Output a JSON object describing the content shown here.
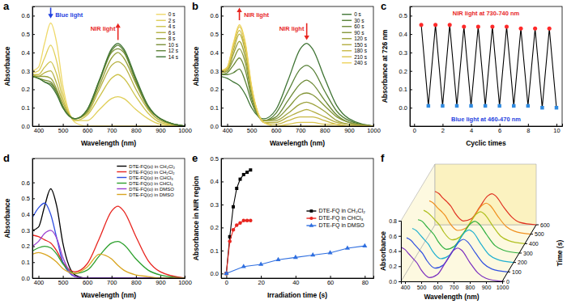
{
  "chart_data": [
    {
      "title": "a",
      "type": "line",
      "xlabel": "Wavelength (nm)",
      "ylabel": "Absorbance",
      "x": [
        375,
        400,
        425,
        450,
        475,
        500,
        550,
        600,
        650,
        700,
        726,
        750,
        800,
        850,
        900,
        1000
      ],
      "xlim": [
        375,
        1000
      ],
      "xticks": [
        400,
        500,
        600,
        700,
        800,
        900,
        1000
      ],
      "ylim": [
        0,
        0.65
      ],
      "yticks": [
        {
          "value": 0,
          "label": "0.0"
        },
        0.1,
        0.2,
        0.3,
        0.4,
        0.5,
        0.6
      ],
      "legend": "top right",
      "annotations": [
        {
          "text": "Blue light",
          "color": "#1f3fe0"
        },
        {
          "text": "NIR light",
          "color": "#e8251f"
        }
      ],
      "series": [
        {
          "name": "0 s",
          "color": "#efd96a",
          "values": [
            0.3,
            0.32,
            0.45,
            0.56,
            0.45,
            0.22,
            0.02,
            0,
            0,
            0,
            0,
            0,
            0,
            0,
            0,
            0
          ]
        },
        {
          "name": "2 s",
          "color": "#e0cf58",
          "values": [
            0.29,
            0.3,
            0.37,
            0.44,
            0.35,
            0.18,
            0.03,
            0.03,
            0.09,
            0.15,
            0.16,
            0.15,
            0.09,
            0.04,
            0.01,
            0
          ]
        },
        {
          "name": "4 s",
          "color": "#cdc24a",
          "values": [
            0.28,
            0.28,
            0.32,
            0.35,
            0.28,
            0.15,
            0.03,
            0.06,
            0.16,
            0.26,
            0.28,
            0.26,
            0.16,
            0.07,
            0.02,
            0
          ]
        },
        {
          "name": "6 s",
          "color": "#b5b03f",
          "values": [
            0.28,
            0.27,
            0.29,
            0.3,
            0.23,
            0.13,
            0.04,
            0.07,
            0.2,
            0.33,
            0.35,
            0.33,
            0.2,
            0.09,
            0.03,
            0
          ]
        },
        {
          "name": "8 s",
          "color": "#97a03a",
          "values": [
            0.27,
            0.27,
            0.27,
            0.26,
            0.2,
            0.11,
            0.04,
            0.08,
            0.22,
            0.37,
            0.4,
            0.37,
            0.23,
            0.1,
            0.04,
            0
          ]
        },
        {
          "name": "10 s",
          "color": "#7a9038",
          "values": [
            0.27,
            0.26,
            0.25,
            0.24,
            0.19,
            0.11,
            0.04,
            0.08,
            0.24,
            0.4,
            0.42,
            0.4,
            0.24,
            0.1,
            0.04,
            0
          ]
        },
        {
          "name": "12 s",
          "color": "#5d8236",
          "values": [
            0.27,
            0.26,
            0.24,
            0.23,
            0.18,
            0.1,
            0.04,
            0.09,
            0.25,
            0.41,
            0.44,
            0.41,
            0.25,
            0.11,
            0.04,
            0
          ]
        },
        {
          "name": "14 s",
          "color": "#3f7434",
          "values": [
            0.27,
            0.26,
            0.24,
            0.22,
            0.17,
            0.1,
            0.04,
            0.09,
            0.25,
            0.42,
            0.45,
            0.42,
            0.26,
            0.11,
            0.04,
            0
          ]
        }
      ]
    },
    {
      "title": "b",
      "type": "line",
      "xlabel": "Wavelength (nm)",
      "ylabel": "Absorbance",
      "x": [
        375,
        400,
        425,
        450,
        475,
        500,
        550,
        600,
        650,
        700,
        726,
        750,
        800,
        850,
        900,
        1000
      ],
      "xlim": [
        375,
        1000
      ],
      "xticks": [
        400,
        500,
        600,
        700,
        800,
        900,
        1000
      ],
      "ylim": [
        0,
        0.65
      ],
      "yticks": [
        {
          "value": 0,
          "label": "0.0"
        },
        0.1,
        0.2,
        0.3,
        0.4,
        0.5,
        0.6
      ],
      "legend": "top right",
      "annotations": [
        {
          "text": "NIR light",
          "color": "#e8251f"
        },
        {
          "text": "NIR light",
          "color": "#e8251f"
        }
      ],
      "series": [
        {
          "name": "0 s",
          "color": "#3f7434",
          "values": [
            0.27,
            0.26,
            0.24,
            0.22,
            0.17,
            0.1,
            0.04,
            0.09,
            0.25,
            0.42,
            0.45,
            0.42,
            0.26,
            0.11,
            0.04,
            0
          ]
        },
        {
          "name": "30 s",
          "color": "#567f35",
          "values": [
            0.28,
            0.28,
            0.29,
            0.31,
            0.24,
            0.13,
            0.03,
            0.07,
            0.19,
            0.31,
            0.33,
            0.31,
            0.19,
            0.08,
            0.03,
            0
          ]
        },
        {
          "name": "60 s",
          "color": "#6d8a37",
          "values": [
            0.28,
            0.29,
            0.33,
            0.37,
            0.3,
            0.15,
            0.03,
            0.05,
            0.14,
            0.23,
            0.25,
            0.23,
            0.14,
            0.06,
            0.02,
            0
          ]
        },
        {
          "name": "90 s",
          "color": "#849639",
          "values": [
            0.29,
            0.3,
            0.36,
            0.42,
            0.34,
            0.17,
            0.03,
            0.04,
            0.1,
            0.17,
            0.18,
            0.17,
            0.11,
            0.05,
            0.02,
            0
          ]
        },
        {
          "name": "120 s",
          "color": "#9ca23c",
          "values": [
            0.29,
            0.3,
            0.39,
            0.46,
            0.37,
            0.19,
            0.03,
            0.03,
            0.07,
            0.12,
            0.13,
            0.12,
            0.08,
            0.03,
            0.01,
            0
          ]
        },
        {
          "name": "150 s",
          "color": "#b3ad40",
          "values": [
            0.29,
            0.31,
            0.41,
            0.5,
            0.4,
            0.2,
            0.02,
            0.02,
            0.05,
            0.08,
            0.09,
            0.08,
            0.05,
            0.02,
            0.01,
            0
          ]
        },
        {
          "name": "180 s",
          "color": "#c9b945",
          "values": [
            0.3,
            0.31,
            0.43,
            0.52,
            0.42,
            0.21,
            0.02,
            0.01,
            0.03,
            0.05,
            0.05,
            0.05,
            0.03,
            0.01,
            0,
            0
          ]
        },
        {
          "name": "210 s",
          "color": "#dcc64e",
          "values": [
            0.3,
            0.32,
            0.44,
            0.54,
            0.44,
            0.21,
            0.02,
            0,
            0.01,
            0.02,
            0.02,
            0.02,
            0.01,
            0.01,
            0,
            0
          ]
        },
        {
          "name": "240 s",
          "color": "#eed35c",
          "values": [
            0.3,
            0.32,
            0.45,
            0.55,
            0.45,
            0.22,
            0.02,
            0,
            0,
            0,
            0,
            0,
            0,
            0,
            0,
            0
          ]
        }
      ]
    },
    {
      "title": "c",
      "type": "line",
      "xlabel": "Cyclic times",
      "ylabel": "Absorbance at 726 nm",
      "xlim": [
        -0.3,
        10.4
      ],
      "xticks": [
        0,
        2,
        4,
        6,
        8,
        10
      ],
      "ylim": [
        -0.1,
        0.55
      ],
      "yticks": [
        {
          "value": 0,
          "label": "0.0"
        },
        0.1,
        0.2,
        0.3,
        0.4,
        0.5
      ],
      "annotations": [
        {
          "text": "NIR light at 730-740 nm",
          "color": "#e8251f"
        },
        {
          "text": "Blue light at 460-470 nm",
          "color": "#1f3fe0"
        }
      ],
      "series": [
        {
          "type": "line",
          "color": "#000000",
          "x": [
            0.5,
            1,
            1.5,
            2,
            2.5,
            3,
            3.5,
            4,
            4.5,
            5,
            5.5,
            6,
            6.5,
            7,
            7.5,
            8,
            8.5,
            9,
            9.5,
            10
          ],
          "values": [
            0.45,
            0.01,
            0.45,
            0.01,
            0.45,
            0.01,
            0.44,
            0.01,
            0.44,
            0.01,
            0.44,
            0.01,
            0.44,
            0.01,
            0.43,
            0.01,
            0.43,
            0,
            0.43,
            0
          ]
        },
        {
          "type": "scatter",
          "color": "#ff2a2a",
          "marker": "circle",
          "x": [
            0.5,
            1.5,
            2.5,
            3.5,
            4.5,
            5.5,
            6.5,
            7.5,
            8.5,
            9.5
          ],
          "values": [
            0.45,
            0.45,
            0.45,
            0.44,
            0.44,
            0.44,
            0.44,
            0.43,
            0.43,
            0.43
          ]
        },
        {
          "type": "scatter",
          "color": "#2f8ae0",
          "marker": "square",
          "x": [
            1,
            2,
            3,
            4,
            5,
            6,
            7,
            8,
            9,
            10
          ],
          "values": [
            0.01,
            0.01,
            0.01,
            0.01,
            0.01,
            0.01,
            0.01,
            0.01,
            0,
            0
          ]
        }
      ]
    },
    {
      "title": "d",
      "type": "line",
      "xlabel": "Wavelength (nm)",
      "ylabel": "Absorbance",
      "x": [
        375,
        400,
        425,
        450,
        475,
        500,
        550,
        600,
        650,
        700,
        726,
        750,
        800,
        850,
        900,
        1000
      ],
      "xlim": [
        375,
        1000
      ],
      "xticks": [
        400,
        500,
        600,
        700,
        800,
        900,
        1000
      ],
      "ylim": [
        0,
        0.75
      ],
      "yticks": [
        {
          "value": 0,
          "label": "0.0"
        },
        0.1,
        0.2,
        0.3,
        0.4,
        0.5,
        0.6
      ],
      "legend": "top right",
      "series": [
        {
          "name": "DTE-FQ(o) in CH₂Cl₂",
          "color": "#000000",
          "values": [
            0.3,
            0.32,
            0.45,
            0.56,
            0.45,
            0.22,
            0.02,
            0,
            0,
            0,
            0,
            0,
            0,
            0,
            0,
            0
          ]
        },
        {
          "name": "DTE-FQ(c) in CH₂Cl₂",
          "color": "#e8251f",
          "values": [
            0.27,
            0.26,
            0.24,
            0.22,
            0.17,
            0.1,
            0.04,
            0.09,
            0.25,
            0.42,
            0.45,
            0.42,
            0.26,
            0.11,
            0.04,
            0
          ]
        },
        {
          "name": "DTE-FQ(o) in CHCl₃",
          "color": "#2f4fe0",
          "values": [
            0.38,
            0.44,
            0.47,
            0.4,
            0.25,
            0.1,
            0.01,
            0,
            0,
            0,
            0,
            0,
            0,
            0,
            0,
            0
          ]
        },
        {
          "name": "DTE-FQ(c) in CHCl₃",
          "color": "#2ca02c",
          "values": [
            0.17,
            0.19,
            0.2,
            0.19,
            0.15,
            0.09,
            0.03,
            0.05,
            0.14,
            0.22,
            0.23,
            0.21,
            0.12,
            0.05,
            0.02,
            0
          ]
        },
        {
          "name": "DTE-FQ(o) in DMSO",
          "color": "#9b3fd0",
          "values": [
            0.2,
            0.23,
            0.28,
            0.3,
            0.25,
            0.13,
            0.01,
            0,
            0,
            0,
            0,
            0,
            0,
            0,
            0,
            0
          ]
        },
        {
          "name": "DTE-FQ(c) in DMSO",
          "color": "#d9a520",
          "values": [
            0.15,
            0.16,
            0.15,
            0.13,
            0.1,
            0.06,
            0.03,
            0.07,
            0.15,
            0.12,
            0.08,
            0.05,
            0.02,
            0.01,
            0,
            0
          ]
        }
      ]
    },
    {
      "title": "e",
      "type": "line",
      "xlabel": "Irradiation time (s)",
      "ylabel": "Absorbance in NIR region",
      "xlim": [
        -3,
        85
      ],
      "xticks": [
        0,
        20,
        40,
        60,
        80
      ],
      "ylim": [
        -0.02,
        0.5
      ],
      "yticks": [
        {
          "value": 0,
          "label": "0.0"
        },
        0.1,
        0.2,
        0.3,
        0.4,
        0.5
      ],
      "legend": "right",
      "series": [
        {
          "name": "DTE-FQ in CH₂Cl₂",
          "color": "#000000",
          "marker": "square",
          "x": [
            0,
            2,
            4,
            6,
            8,
            10,
            12,
            14
          ],
          "values": [
            0,
            0.16,
            0.29,
            0.37,
            0.41,
            0.43,
            0.44,
            0.45
          ]
        },
        {
          "name": "DTE-FQ in CHCl₃",
          "color": "#e8251f",
          "marker": "circle",
          "x": [
            0,
            2,
            4,
            6,
            8,
            10,
            12,
            14
          ],
          "values": [
            0,
            0.14,
            0.19,
            0.21,
            0.22,
            0.23,
            0.23,
            0.23
          ]
        },
        {
          "name": "DTE-FQ in DMSO",
          "color": "#2f6fe0",
          "marker": "triangle",
          "x": [
            0,
            10,
            20,
            30,
            40,
            50,
            60,
            70,
            80
          ],
          "values": [
            0,
            0.03,
            0.04,
            0.06,
            0.07,
            0.08,
            0.09,
            0.11,
            0.12
          ]
        }
      ]
    },
    {
      "title": "f",
      "type": "waterfall",
      "xlabel": "Wavelength (nm)",
      "ylabel": "Absorbance",
      "zlabel": "Time (s)",
      "x": [
        375,
        400,
        425,
        450,
        475,
        500,
        550,
        600,
        650,
        700,
        726,
        750,
        800,
        850,
        900,
        1000
      ],
      "xlim": [
        375,
        1000
      ],
      "xticks": [
        400,
        500,
        600,
        700,
        800,
        900,
        1000
      ],
      "ylim": [
        0,
        0.8
      ],
      "yticks": [
        {
          "value": 0,
          "label": "0.0"
        },
        0.2,
        0.4,
        0.6,
        0.8
      ],
      "zlim": [
        0,
        600
      ],
      "zticks": [
        0,
        100,
        200,
        300,
        400,
        500,
        600
      ],
      "series": [
        {
          "time": 0,
          "color": "#7b2fbf",
          "values": [
            0.45,
            0.42,
            0.36,
            0.3,
            0.24,
            0.15,
            0.05,
            0.09,
            0.25,
            0.41,
            0.44,
            0.41,
            0.25,
            0.11,
            0.04,
            0
          ]
        },
        {
          "time": 100,
          "color": "#3050e0",
          "values": [
            0.45,
            0.42,
            0.36,
            0.3,
            0.24,
            0.15,
            0.05,
            0.09,
            0.24,
            0.4,
            0.43,
            0.4,
            0.25,
            0.11,
            0.04,
            0
          ]
        },
        {
          "time": 200,
          "color": "#20b0d0",
          "values": [
            0.45,
            0.42,
            0.36,
            0.3,
            0.24,
            0.15,
            0.05,
            0.09,
            0.24,
            0.4,
            0.43,
            0.4,
            0.24,
            0.1,
            0.04,
            0
          ]
        },
        {
          "time": 300,
          "color": "#30b040",
          "values": [
            0.44,
            0.42,
            0.36,
            0.3,
            0.24,
            0.15,
            0.05,
            0.09,
            0.24,
            0.39,
            0.42,
            0.39,
            0.24,
            0.1,
            0.04,
            0
          ]
        },
        {
          "time": 400,
          "color": "#b0c020",
          "values": [
            0.44,
            0.41,
            0.36,
            0.3,
            0.24,
            0.15,
            0.05,
            0.09,
            0.23,
            0.39,
            0.42,
            0.39,
            0.24,
            0.1,
            0.04,
            0
          ]
        },
        {
          "time": 500,
          "color": "#f09020",
          "values": [
            0.44,
            0.41,
            0.35,
            0.3,
            0.24,
            0.15,
            0.05,
            0.08,
            0.23,
            0.38,
            0.41,
            0.38,
            0.23,
            0.1,
            0.04,
            0
          ]
        },
        {
          "time": 600,
          "color": "#e03020",
          "values": [
            0.44,
            0.41,
            0.35,
            0.3,
            0.24,
            0.15,
            0.05,
            0.08,
            0.23,
            0.38,
            0.41,
            0.38,
            0.23,
            0.1,
            0.03,
            0
          ]
        }
      ]
    }
  ]
}
